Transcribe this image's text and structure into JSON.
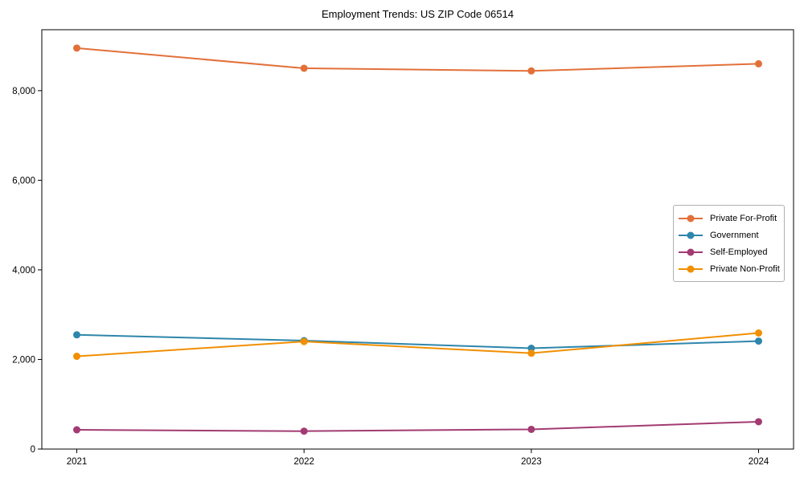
{
  "title": "Employment Trends: US ZIP Code 06514",
  "chart_data": {
    "type": "line",
    "x_labels": [
      "2021",
      "2022",
      "2023",
      "2024"
    ],
    "series": [
      {
        "name": "Private For-Profit",
        "color": "#E2703A",
        "values": [
          8950,
          8500,
          8440,
          8600
        ]
      },
      {
        "name": "Government",
        "color": "#2E86AB",
        "values": [
          2550,
          2420,
          2250,
          2410
        ]
      },
      {
        "name": "Self-Employed",
        "color": "#A23B72",
        "values": [
          430,
          400,
          440,
          610
        ]
      },
      {
        "name": "Private Non-Profit",
        "color": "#F18F01",
        "values": [
          2070,
          2400,
          2140,
          2590
        ]
      }
    ],
    "ylim": [
      0,
      9360
    ],
    "yticks": [
      0,
      2000,
      4000,
      6000,
      8000
    ],
    "ytick_labels": [
      "0",
      "2,000",
      "4,000",
      "6,000",
      "8,000"
    ],
    "xlabel": "",
    "ylabel": "",
    "grid": false,
    "legend_position": "center right",
    "axis_color": "#000000",
    "background_color": "#ffffff"
  }
}
